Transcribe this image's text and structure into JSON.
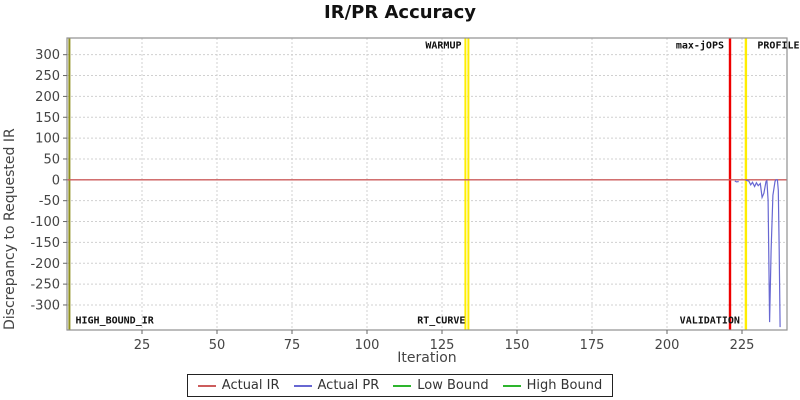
{
  "title": "IR/PR Accuracy",
  "colors": {
    "actual_ir": "#cc5c5c",
    "actual_pr": "#6767d2",
    "bound_green": "#2db52d",
    "marker_yellow": "#ffee00",
    "marker_red": "#ee0000",
    "marker_olive": "#8f8f1f",
    "grid": "#d0d0d0",
    "plot_border": "#909090"
  },
  "chart_data": {
    "type": "line",
    "title": "IR/PR Accuracy",
    "xlabel": "Iteration",
    "ylabel": "Discrepancy to Requested IR",
    "xlim": [
      0,
      240
    ],
    "ylim": [
      -360,
      340
    ],
    "xticks": [
      25,
      50,
      75,
      100,
      125,
      150,
      175,
      200,
      225
    ],
    "yticks": [
      -300,
      -250,
      -200,
      -150,
      -100,
      -50,
      0,
      50,
      100,
      150,
      200,
      250,
      300
    ],
    "grid": true,
    "legend_position": "bottom",
    "series": [
      {
        "name": "Actual IR",
        "color": "#cc5c5c",
        "width": 1.4,
        "segments": [
          [
            [
              0,
              0
            ],
            [
              240,
              0
            ]
          ]
        ]
      },
      {
        "name": "Actual PR",
        "color": "#6767d2",
        "width": 1.2,
        "segments": [
          [
            [
              222.6,
              -3
            ],
            [
              223.2,
              -5
            ],
            [
              223.9,
              -4
            ]
          ],
          [
            [
              226.3,
              -1
            ],
            [
              227.3,
              -3
            ],
            [
              227.9,
              -12
            ],
            [
              228.5,
              -6
            ],
            [
              229.2,
              -16
            ],
            [
              229.8,
              -7
            ],
            [
              230.4,
              -14
            ],
            [
              231.1,
              -9
            ],
            [
              231.7,
              -42
            ],
            [
              232.3,
              -32
            ],
            [
              233.0,
              -4
            ],
            [
              233.3,
              -2
            ],
            [
              233.7,
              -49
            ],
            [
              234.2,
              -341
            ],
            [
              234.7,
              -170
            ],
            [
              235.3,
              -37
            ],
            [
              236.0,
              -4
            ],
            [
              236.3,
              0
            ],
            [
              236.8,
              0
            ],
            [
              237.1,
              -25
            ],
            [
              237.4,
              -170
            ],
            [
              237.7,
              -353
            ]
          ]
        ]
      },
      {
        "name": "Low Bound",
        "color": "#2db52d",
        "width": 1.2,
        "segments": []
      },
      {
        "name": "High Bound",
        "color": "#2db52d",
        "width": 1.2,
        "segments": []
      }
    ],
    "markers": [
      {
        "x": 0.8,
        "color": "#8f8f1f",
        "w": 2
      },
      {
        "x": 132.8,
        "color": "#ffee00",
        "w": 2
      },
      {
        "x": 133.8,
        "color": "#ffee00",
        "w": 2
      },
      {
        "x": 221.0,
        "color": "#ee0000",
        "w": 2.4
      },
      {
        "x": 226.3,
        "color": "#ffee00",
        "w": 2.4
      }
    ],
    "annotations": [
      {
        "text": "WARMUP",
        "x": 132.5,
        "align": "end",
        "v": "top"
      },
      {
        "text": "max-jOPS",
        "x": 220.0,
        "align": "end",
        "v": "top"
      },
      {
        "text": "PROFILE",
        "x": 228.8,
        "align": "start",
        "v": "top"
      },
      {
        "text": "HIGH_BOUND_IR",
        "x": 1.5,
        "align": "start",
        "v": "bottom"
      },
      {
        "text": "RT_CURVE",
        "x": 133.8,
        "align": "end",
        "v": "bottom"
      },
      {
        "text": "VALIDATION",
        "x": 225.3,
        "align": "end",
        "v": "bottom"
      }
    ]
  }
}
